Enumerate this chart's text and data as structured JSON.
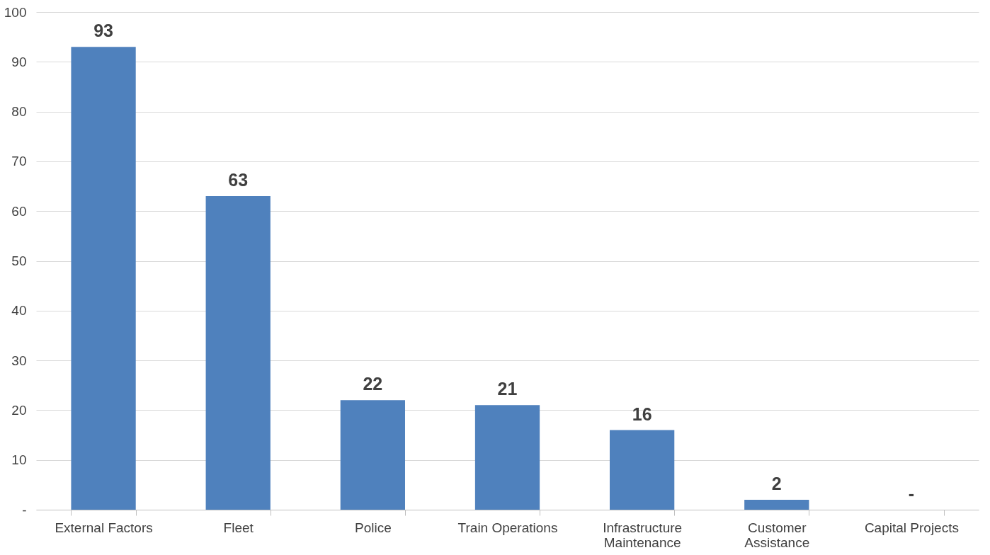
{
  "chart_data": {
    "type": "bar",
    "categories": [
      "External Factors",
      "Fleet",
      "Police",
      "Train Operations",
      "Infrastructure Maintenance",
      "Customer Assistance",
      "Capital Projects"
    ],
    "values": [
      93,
      63,
      22,
      21,
      16,
      2,
      0
    ],
    "value_labels": [
      "93",
      "63",
      "22",
      "21",
      "16",
      "2",
      "-"
    ],
    "color": "#4f81bd",
    "ylim": [
      0,
      100
    ],
    "yticks": [
      {
        "value": 0,
        "label": "-"
      },
      10,
      20,
      30,
      40,
      50,
      60,
      70,
      80,
      90,
      100
    ],
    "grid": "y"
  }
}
